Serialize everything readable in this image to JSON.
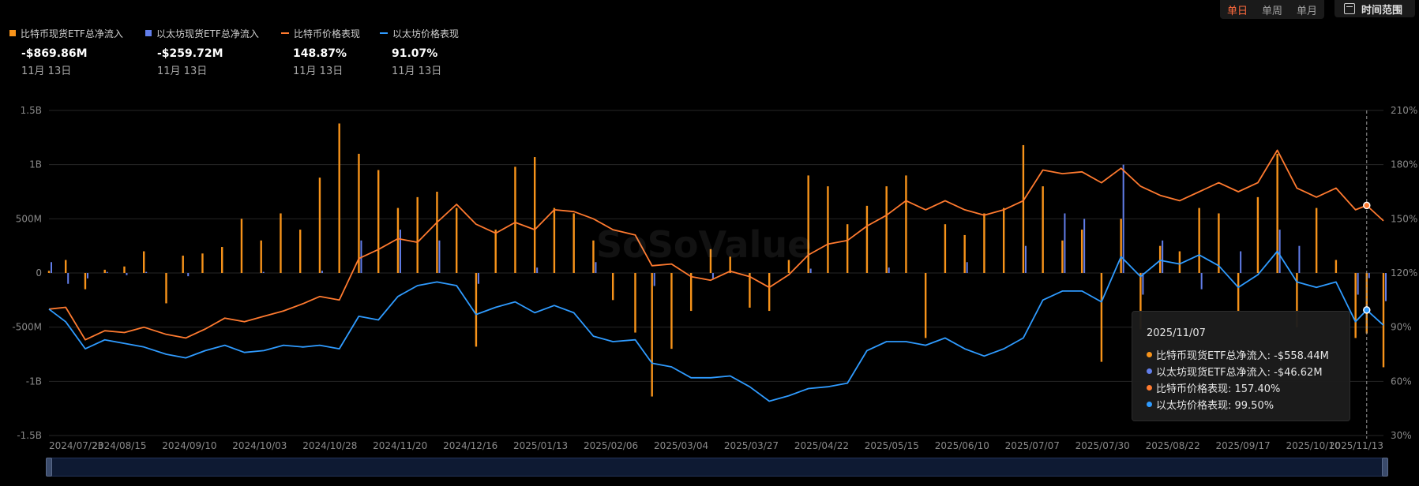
{
  "granularity": {
    "options": [
      "单日",
      "单周",
      "单月"
    ],
    "active": "单日"
  },
  "range_button": {
    "label": "时间范围",
    "icon": "calendar-icon"
  },
  "watermark": {
    "text": "SoSoValue"
  },
  "legend": [
    {
      "name": "比特币现货ETF总净流入",
      "value": "-$869.86M",
      "date": "11月 13日",
      "color": "#f7931a",
      "shape": "square"
    },
    {
      "name": "以太坊现货ETF总净流入",
      "value": "-$259.72M",
      "date": "11月 13日",
      "color": "#627eea",
      "shape": "square"
    },
    {
      "name": "比特币价格表现",
      "value": "148.87%",
      "date": "11月 13日",
      "color": "#ff7a2f",
      "shape": "line"
    },
    {
      "name": "以太坊价格表现",
      "value": "91.07%",
      "date": "11月 13日",
      "color": "#2f9bff",
      "shape": "line"
    }
  ],
  "tooltip": {
    "date": "2025/11/07",
    "rows": [
      {
        "text": "比特币现货ETF总净流入: -$558.44M",
        "color": "#f7931a"
      },
      {
        "text": "以太坊现货ETF总净流入: -$46.62M",
        "color": "#627eea"
      },
      {
        "text": "比特币价格表现: 157.40%",
        "color": "#ff7a2f"
      },
      {
        "text": "以太坊价格表现: 99.50%",
        "color": "#2f9bff"
      }
    ]
  },
  "chart_data": {
    "type": "bar",
    "x_range": [
      "2024/07/23",
      "2025/11/13"
    ],
    "x_tick_labels": [
      "2024/07/23",
      "2024/08/15",
      "2024/09/10",
      "2024/10/03",
      "2024/10/28",
      "2024/11/20",
      "2024/12/16",
      "2025/01/13",
      "2025/02/06",
      "2025/03/04",
      "2025/03/27",
      "2025/04/22",
      "2025/05/15",
      "2025/06/10",
      "2025/07/07",
      "2025/07/30",
      "2025/08/22",
      "2025/09/17",
      "2025/10/10",
      "2025/11/13"
    ],
    "y_left": {
      "ticks": [
        "1.5B",
        "1B",
        "500M",
        "0",
        "-500M",
        "-1B",
        "-1.5B"
      ],
      "range": [
        -1.5,
        1.5
      ],
      "unit": "B USD"
    },
    "y_right": {
      "ticks": [
        "210%",
        "180%",
        "150%",
        "120%",
        "90%",
        "60%",
        "30%"
      ],
      "range": [
        30,
        210
      ],
      "unit": "%"
    },
    "grid": true,
    "legend_position": "top-left",
    "series": [
      {
        "name": "比特币现货ETF总净流入",
        "type": "bar",
        "axis": "left",
        "color": "#f7931a",
        "points": [
          [
            "2024/07/23",
            0.02
          ],
          [
            "2024/07/29",
            0.12
          ],
          [
            "2024/08/05",
            -0.15
          ],
          [
            "2024/08/12",
            0.03
          ],
          [
            "2024/08/19",
            0.06
          ],
          [
            "2024/08/26",
            0.2
          ],
          [
            "2024/09/03",
            -0.28
          ],
          [
            "2024/09/09",
            0.16
          ],
          [
            "2024/09/16",
            0.18
          ],
          [
            "2024/09/23",
            0.24
          ],
          [
            "2024/09/30",
            0.5
          ],
          [
            "2024/10/07",
            0.3
          ],
          [
            "2024/10/14",
            0.55
          ],
          [
            "2024/10/21",
            0.4
          ],
          [
            "2024/10/28",
            0.88
          ],
          [
            "2024/11/04",
            1.38
          ],
          [
            "2024/11/11",
            1.1
          ],
          [
            "2024/11/18",
            0.95
          ],
          [
            "2024/11/25",
            0.6
          ],
          [
            "2024/12/02",
            0.7
          ],
          [
            "2024/12/09",
            0.75
          ],
          [
            "2024/12/16",
            0.6
          ],
          [
            "2024/12/23",
            -0.68
          ],
          [
            "2024/12/30",
            0.4
          ],
          [
            "2025/01/06",
            0.98
          ],
          [
            "2025/01/13",
            1.07
          ],
          [
            "2025/01/20",
            0.6
          ],
          [
            "2025/01/27",
            0.55
          ],
          [
            "2025/02/03",
            0.3
          ],
          [
            "2025/02/10",
            -0.25
          ],
          [
            "2025/02/18",
            -0.55
          ],
          [
            "2025/02/24",
            -1.14
          ],
          [
            "2025/03/03",
            -0.7
          ],
          [
            "2025/03/10",
            -0.35
          ],
          [
            "2025/03/17",
            0.22
          ],
          [
            "2025/03/24",
            0.15
          ],
          [
            "2025/03/31",
            -0.32
          ],
          [
            "2025/04/07",
            -0.35
          ],
          [
            "2025/04/14",
            0.12
          ],
          [
            "2025/04/21",
            0.9
          ],
          [
            "2025/04/28",
            0.8
          ],
          [
            "2025/05/05",
            0.45
          ],
          [
            "2025/05/12",
            0.62
          ],
          [
            "2025/05/19",
            0.8
          ],
          [
            "2025/05/26",
            0.9
          ],
          [
            "2025/06/02",
            -0.6
          ],
          [
            "2025/06/09",
            0.45
          ],
          [
            "2025/06/16",
            0.35
          ],
          [
            "2025/06/23",
            0.55
          ],
          [
            "2025/06/30",
            0.6
          ],
          [
            "2025/07/07",
            1.18
          ],
          [
            "2025/07/14",
            0.8
          ],
          [
            "2025/07/21",
            0.3
          ],
          [
            "2025/07/28",
            0.4
          ],
          [
            "2025/08/04",
            -0.82
          ],
          [
            "2025/08/11",
            0.5
          ],
          [
            "2025/08/18",
            -0.52
          ],
          [
            "2025/08/25",
            0.25
          ],
          [
            "2025/09/01",
            0.2
          ],
          [
            "2025/09/08",
            0.6
          ],
          [
            "2025/09/15",
            0.55
          ],
          [
            "2025/09/22",
            -0.35
          ],
          [
            "2025/09/29",
            0.7
          ],
          [
            "2025/10/06",
            1.1
          ],
          [
            "2025/10/13",
            -0.5
          ],
          [
            "2025/10/20",
            0.6
          ],
          [
            "2025/10/27",
            0.12
          ],
          [
            "2025/11/03",
            -0.6
          ],
          [
            "2025/11/07",
            -0.558
          ],
          [
            "2025/11/13",
            -0.87
          ]
        ]
      },
      {
        "name": "以太坊现货ETF总净流入",
        "type": "bar",
        "axis": "left",
        "color": "#627eea",
        "points": [
          [
            "2024/07/23",
            0.1
          ],
          [
            "2024/07/29",
            -0.1
          ],
          [
            "2024/08/05",
            -0.05
          ],
          [
            "2024/08/12",
            0.01
          ],
          [
            "2024/08/19",
            -0.02
          ],
          [
            "2024/08/26",
            0.01
          ],
          [
            "2024/09/10",
            -0.03
          ],
          [
            "2024/10/07",
            0.01
          ],
          [
            "2024/10/28",
            0.02
          ],
          [
            "2024/11/11",
            0.3
          ],
          [
            "2024/11/25",
            0.4
          ],
          [
            "2024/12/09",
            0.3
          ],
          [
            "2024/12/23",
            -0.1
          ],
          [
            "2025/01/13",
            0.05
          ],
          [
            "2025/02/03",
            0.1
          ],
          [
            "2025/02/24",
            -0.12
          ],
          [
            "2025/03/17",
            -0.05
          ],
          [
            "2025/04/21",
            0.04
          ],
          [
            "2025/05/19",
            0.05
          ],
          [
            "2025/06/16",
            0.1
          ],
          [
            "2025/07/07",
            0.25
          ],
          [
            "2025/07/21",
            0.55
          ],
          [
            "2025/07/28",
            0.5
          ],
          [
            "2025/08/11",
            1.0
          ],
          [
            "2025/08/18",
            -0.2
          ],
          [
            "2025/08/25",
            0.3
          ],
          [
            "2025/09/08",
            -0.15
          ],
          [
            "2025/09/22",
            0.2
          ],
          [
            "2025/10/06",
            0.4
          ],
          [
            "2025/10/13",
            0.25
          ],
          [
            "2025/11/03",
            -0.2
          ],
          [
            "2025/11/07",
            -0.047
          ],
          [
            "2025/11/13",
            -0.26
          ]
        ]
      },
      {
        "name": "比特币价格表现",
        "type": "line",
        "axis": "right",
        "color": "#ff7a2f",
        "points": [
          [
            "2024/07/23",
            100
          ],
          [
            "2024/07/29",
            101
          ],
          [
            "2024/08/05",
            83
          ],
          [
            "2024/08/12",
            88
          ],
          [
            "2024/08/19",
            87
          ],
          [
            "2024/08/26",
            90
          ],
          [
            "2024/09/03",
            86
          ],
          [
            "2024/09/10",
            84
          ],
          [
            "2024/09/17",
            89
          ],
          [
            "2024/09/24",
            95
          ],
          [
            "2024/10/01",
            93
          ],
          [
            "2024/10/08",
            96
          ],
          [
            "2024/10/15",
            99
          ],
          [
            "2024/10/22",
            103
          ],
          [
            "2024/10/28",
            107
          ],
          [
            "2024/11/04",
            105
          ],
          [
            "2024/11/11",
            128
          ],
          [
            "2024/11/18",
            133
          ],
          [
            "2024/11/25",
            139
          ],
          [
            "2024/12/02",
            137
          ],
          [
            "2024/12/09",
            148
          ],
          [
            "2024/12/16",
            158
          ],
          [
            "2024/12/23",
            147
          ],
          [
            "2024/12/30",
            142
          ],
          [
            "2025/01/06",
            148
          ],
          [
            "2025/01/13",
            144
          ],
          [
            "2025/01/20",
            155
          ],
          [
            "2025/01/27",
            154
          ],
          [
            "2025/02/03",
            150
          ],
          [
            "2025/02/10",
            144
          ],
          [
            "2025/02/18",
            141
          ],
          [
            "2025/02/24",
            124
          ],
          [
            "2025/03/03",
            125
          ],
          [
            "2025/03/10",
            118
          ],
          [
            "2025/03/17",
            116
          ],
          [
            "2025/03/24",
            121
          ],
          [
            "2025/03/31",
            118
          ],
          [
            "2025/04/07",
            112
          ],
          [
            "2025/04/14",
            119
          ],
          [
            "2025/04/21",
            130
          ],
          [
            "2025/04/28",
            136
          ],
          [
            "2025/05/05",
            138
          ],
          [
            "2025/05/12",
            146
          ],
          [
            "2025/05/19",
            152
          ],
          [
            "2025/05/26",
            160
          ],
          [
            "2025/06/02",
            155
          ],
          [
            "2025/06/09",
            160
          ],
          [
            "2025/06/16",
            155
          ],
          [
            "2025/06/23",
            152
          ],
          [
            "2025/06/30",
            155
          ],
          [
            "2025/07/07",
            160
          ],
          [
            "2025/07/14",
            177
          ],
          [
            "2025/07/21",
            175
          ],
          [
            "2025/07/28",
            176
          ],
          [
            "2025/08/04",
            170
          ],
          [
            "2025/08/11",
            178
          ],
          [
            "2025/08/18",
            168
          ],
          [
            "2025/08/25",
            163
          ],
          [
            "2025/09/01",
            160
          ],
          [
            "2025/09/08",
            165
          ],
          [
            "2025/09/15",
            170
          ],
          [
            "2025/09/22",
            165
          ],
          [
            "2025/09/29",
            170
          ],
          [
            "2025/10/06",
            188
          ],
          [
            "2025/10/13",
            167
          ],
          [
            "2025/10/20",
            162
          ],
          [
            "2025/10/27",
            167
          ],
          [
            "2025/11/03",
            155
          ],
          [
            "2025/11/07",
            157.4
          ],
          [
            "2025/11/13",
            148.87
          ]
        ]
      },
      {
        "name": "以太坊价格表现",
        "type": "line",
        "axis": "right",
        "color": "#2f9bff",
        "points": [
          [
            "2024/07/23",
            100
          ],
          [
            "2024/07/29",
            93
          ],
          [
            "2024/08/05",
            78
          ],
          [
            "2024/08/12",
            83
          ],
          [
            "2024/08/19",
            81
          ],
          [
            "2024/08/26",
            79
          ],
          [
            "2024/09/03",
            75
          ],
          [
            "2024/09/10",
            73
          ],
          [
            "2024/09/17",
            77
          ],
          [
            "2024/09/24",
            80
          ],
          [
            "2024/10/01",
            76
          ],
          [
            "2024/10/08",
            77
          ],
          [
            "2024/10/15",
            80
          ],
          [
            "2024/10/22",
            79
          ],
          [
            "2024/10/28",
            80
          ],
          [
            "2024/11/04",
            78
          ],
          [
            "2024/11/11",
            96
          ],
          [
            "2024/11/18",
            94
          ],
          [
            "2024/11/25",
            107
          ],
          [
            "2024/12/02",
            113
          ],
          [
            "2024/12/09",
            115
          ],
          [
            "2024/12/16",
            113
          ],
          [
            "2024/12/23",
            97
          ],
          [
            "2024/12/30",
            101
          ],
          [
            "2025/01/06",
            104
          ],
          [
            "2025/01/13",
            98
          ],
          [
            "2025/01/20",
            102
          ],
          [
            "2025/01/27",
            98
          ],
          [
            "2025/02/03",
            85
          ],
          [
            "2025/02/10",
            82
          ],
          [
            "2025/02/18",
            83
          ],
          [
            "2025/02/24",
            70
          ],
          [
            "2025/03/03",
            68
          ],
          [
            "2025/03/10",
            62
          ],
          [
            "2025/03/17",
            62
          ],
          [
            "2025/03/24",
            63
          ],
          [
            "2025/03/31",
            57
          ],
          [
            "2025/04/07",
            49
          ],
          [
            "2025/04/14",
            52
          ],
          [
            "2025/04/21",
            56
          ],
          [
            "2025/04/28",
            57
          ],
          [
            "2025/05/05",
            59
          ],
          [
            "2025/05/12",
            77
          ],
          [
            "2025/05/19",
            82
          ],
          [
            "2025/05/26",
            82
          ],
          [
            "2025/06/02",
            80
          ],
          [
            "2025/06/09",
            84
          ],
          [
            "2025/06/16",
            78
          ],
          [
            "2025/06/23",
            74
          ],
          [
            "2025/06/30",
            78
          ],
          [
            "2025/07/07",
            84
          ],
          [
            "2025/07/14",
            105
          ],
          [
            "2025/07/21",
            110
          ],
          [
            "2025/07/28",
            110
          ],
          [
            "2025/08/04",
            104
          ],
          [
            "2025/08/11",
            129
          ],
          [
            "2025/08/18",
            118
          ],
          [
            "2025/08/25",
            127
          ],
          [
            "2025/09/01",
            125
          ],
          [
            "2025/09/08",
            130
          ],
          [
            "2025/09/15",
            124
          ],
          [
            "2025/09/22",
            112
          ],
          [
            "2025/09/29",
            119
          ],
          [
            "2025/10/06",
            132
          ],
          [
            "2025/10/13",
            115
          ],
          [
            "2025/10/20",
            112
          ],
          [
            "2025/10/27",
            115
          ],
          [
            "2025/11/03",
            93
          ],
          [
            "2025/11/07",
            99.5
          ],
          [
            "2025/11/13",
            91.07
          ]
        ]
      }
    ]
  }
}
